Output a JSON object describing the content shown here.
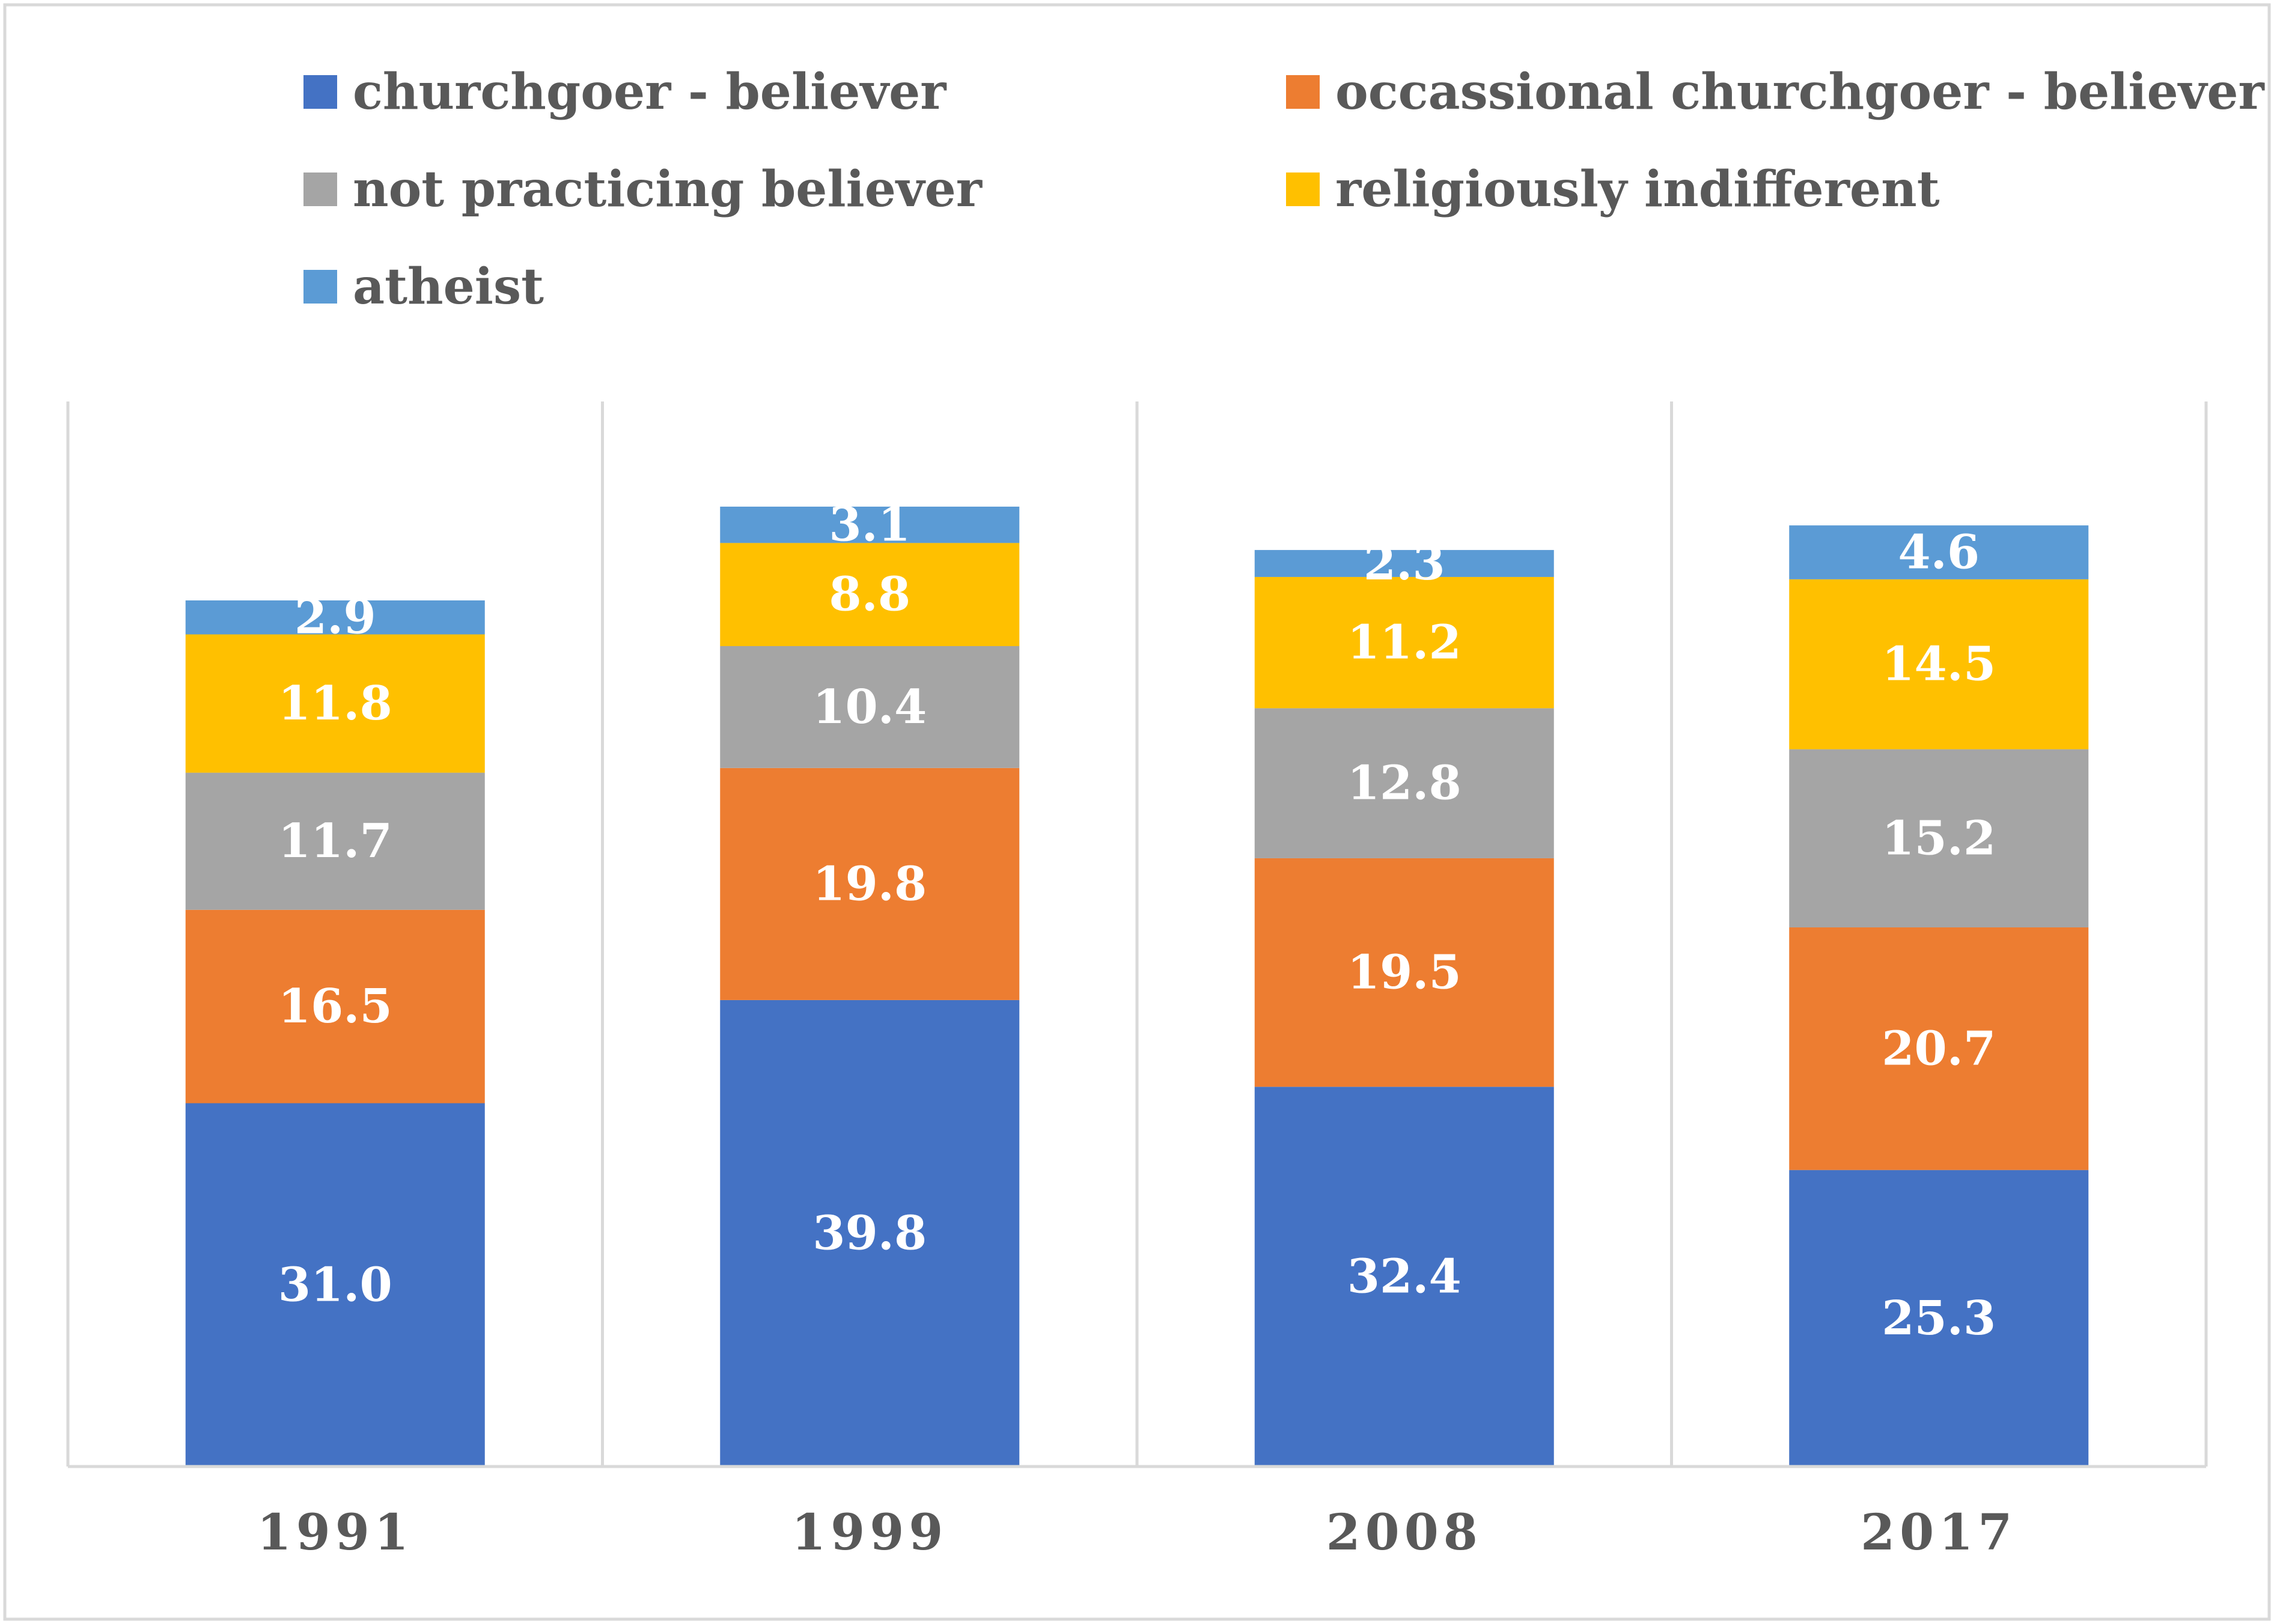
{
  "chart_data": {
    "type": "bar",
    "stacked": true,
    "categories": [
      "1991",
      "1999",
      "2008",
      "2017"
    ],
    "series": [
      {
        "name": "churchgoer - believer",
        "color": "#4472C4",
        "values": [
          31.0,
          39.8,
          32.4,
          25.3
        ],
        "labels": [
          "31.0",
          "39.8",
          "32.4",
          "25.3"
        ]
      },
      {
        "name": "occassional churchgoer - believer",
        "color": "#ED7D31",
        "values": [
          16.5,
          19.8,
          19.5,
          20.7
        ],
        "labels": [
          "16.5",
          "19.8",
          "19.5",
          "20.7"
        ]
      },
      {
        "name": "not practicing believer",
        "color": "#A5A5A5",
        "values": [
          11.7,
          10.4,
          12.8,
          15.2
        ],
        "labels": [
          "11.7",
          "10.4",
          "12.8",
          "15.2"
        ]
      },
      {
        "name": "religiously indifferent",
        "color": "#FFC000",
        "values": [
          11.8,
          8.8,
          11.2,
          14.5
        ],
        "labels": [
          "11.8",
          "8.8",
          "11.2",
          "14.5"
        ]
      },
      {
        "name": "atheist",
        "color": "#5B9BD5",
        "values": [
          2.9,
          3.1,
          2.3,
          4.6
        ],
        "labels": [
          "2.9",
          "3.1",
          "2.3",
          "4.6"
        ]
      }
    ],
    "ylim": [
      0,
      90
    ],
    "legend_position": "top",
    "grid": "vertical separators between categories",
    "title": "",
    "xlabel": "",
    "ylabel": ""
  }
}
